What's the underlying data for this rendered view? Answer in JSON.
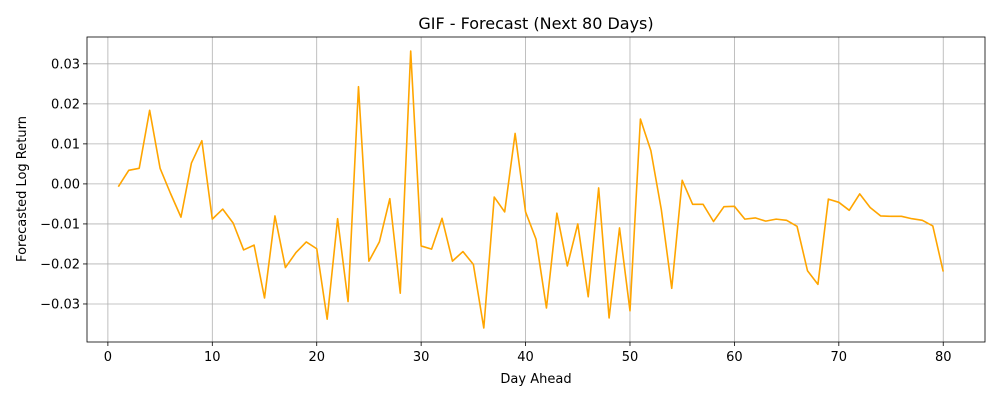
{
  "chart_data": {
    "type": "line",
    "title": "GIF - Forecast (Next 80 Days)",
    "xlabel": "Day Ahead",
    "ylabel": "Forecasted Log Return",
    "xlim": [
      -2,
      84
    ],
    "ylim": [
      -0.0395,
      0.0367
    ],
    "xticks": [
      0,
      10,
      20,
      30,
      40,
      50,
      60,
      70,
      80
    ],
    "yticks": [
      -0.03,
      -0.02,
      -0.01,
      0.0,
      0.01,
      0.02,
      0.03
    ],
    "ytick_labels": [
      "−0.03",
      "−0.02",
      "−0.01",
      "0.00",
      "0.01",
      "0.02",
      "0.03"
    ],
    "grid": true,
    "series": [
      {
        "color": "#ffa500",
        "x": [
          1,
          2,
          3,
          4,
          5,
          6,
          7,
          8,
          9,
          10,
          11,
          12,
          13,
          14,
          15,
          16,
          17,
          18,
          19,
          20,
          21,
          22,
          23,
          24,
          25,
          26,
          27,
          28,
          29,
          30,
          31,
          32,
          33,
          34,
          35,
          36,
          37,
          38,
          39,
          40,
          41,
          42,
          43,
          44,
          45,
          46,
          47,
          48,
          49,
          50,
          51,
          52,
          53,
          54,
          55,
          56,
          57,
          58,
          59,
          60,
          61,
          62,
          63,
          64,
          65,
          66,
          67,
          68,
          69,
          70,
          71,
          72,
          73,
          74,
          75,
          76,
          77,
          78,
          79,
          80
        ],
        "y": [
          -0.0007,
          0.0034,
          0.0039,
          0.0184,
          0.0039,
          -0.0024,
          -0.0083,
          0.0052,
          0.0108,
          -0.0088,
          -0.0063,
          -0.0098,
          -0.0165,
          -0.0153,
          -0.0285,
          -0.008,
          -0.0209,
          -0.0172,
          -0.0145,
          -0.0162,
          -0.0338,
          -0.0087,
          -0.0294,
          0.0243,
          -0.0193,
          -0.0145,
          -0.0037,
          -0.0273,
          0.0332,
          -0.0155,
          -0.0163,
          -0.0086,
          -0.0193,
          -0.0169,
          -0.0201,
          -0.036,
          -0.0033,
          -0.007,
          0.0126,
          -0.007,
          -0.0138,
          -0.031,
          -0.0073,
          -0.0205,
          -0.01,
          -0.0282,
          -0.001,
          -0.0335,
          -0.011,
          -0.0317,
          0.0162,
          0.0083,
          -0.0064,
          -0.0261,
          0.0009,
          -0.0051,
          -0.0051,
          -0.0094,
          -0.0057,
          -0.0056,
          -0.0088,
          -0.0085,
          -0.0093,
          -0.0088,
          -0.0091,
          -0.0106,
          -0.0217,
          -0.0251,
          -0.0038,
          -0.0046,
          -0.0066,
          -0.0025,
          -0.0059,
          -0.008,
          -0.0081,
          -0.0081,
          -0.0087,
          -0.0091,
          -0.0105,
          -0.0219
        ]
      }
    ]
  }
}
